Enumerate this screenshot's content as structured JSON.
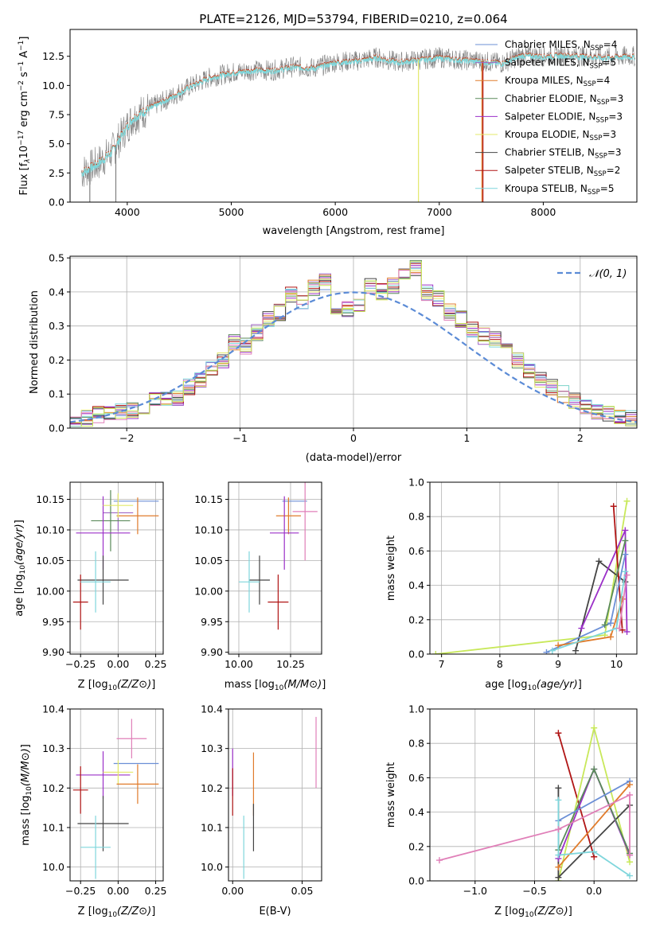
{
  "figure_title": "PLATE=2126, MJD=53794, FIBERID=0210, z=0.064",
  "colors": {
    "chabrier_miles": "#6b8fd6",
    "salpeter_miles": "#a067c6",
    "kroupa_miles": "#e07b2b",
    "chabrier_elodie": "#5a8a5a",
    "salpeter_elodie": "#9b30c8",
    "kroupa_elodie": "#e3e86a",
    "chabrier_stelib": "#444444",
    "salpeter_stelib": "#b01515",
    "kroupa_stelib": "#7fd6dc",
    "data": "#808080",
    "pink": "#e07fb8",
    "lime": "#c8e85a",
    "normal_fit": "#5b8bd6"
  },
  "chart_data": [
    {
      "type": "line",
      "title": "PLATE=2126, MJD=53794, FIBERID=0210, z=0.064",
      "xlabel": "wavelength [Angstrom, rest frame]",
      "ylabel_parts": [
        "Flux [f",
        "λ",
        "10",
        "−17",
        " erg cm",
        "−2",
        " s",
        "−1",
        " A",
        "−1",
        "]"
      ],
      "xlim": [
        3450,
        8900
      ],
      "ylim": [
        0,
        14.8
      ],
      "xticks": [
        "4000",
        "5000",
        "6000",
        "7000",
        "8000"
      ],
      "yticks": [
        "0.0",
        "2.5",
        "5.0",
        "7.5",
        "10.0",
        "12.5"
      ],
      "legend_position": "upper right",
      "legend": [
        {
          "name": "Chabrier MILES",
          "n": "4"
        },
        {
          "name": "Salpeter MILES",
          "n": "5"
        },
        {
          "name": "Kroupa MILES",
          "n": "4"
        },
        {
          "name": "Chabrier ELODIE",
          "n": "3"
        },
        {
          "name": "Salpeter ELODIE",
          "n": "3"
        },
        {
          "name": "Kroupa ELODIE",
          "n": "3"
        },
        {
          "name": "Chabrier STELIB",
          "n": "3"
        },
        {
          "name": "Salpeter STELIB",
          "n": "2"
        },
        {
          "name": "Kroupa STELIB",
          "n": "5"
        }
      ],
      "legend_n_label": ", N",
      "legend_n_sub": "SSP",
      "continuum": [
        [
          3550,
          2.5
        ],
        [
          3700,
          3.2
        ],
        [
          3850,
          4.3
        ],
        [
          3950,
          5.8
        ],
        [
          4050,
          7.2
        ],
        [
          4200,
          8.0
        ],
        [
          4400,
          8.9
        ],
        [
          4600,
          9.9
        ],
        [
          4800,
          10.7
        ],
        [
          5000,
          11.1
        ],
        [
          5200,
          11.3
        ],
        [
          5400,
          11.3
        ],
        [
          5600,
          11.6
        ],
        [
          5800,
          11.5
        ],
        [
          6000,
          12.0
        ],
        [
          6200,
          12.1
        ],
        [
          6400,
          12.4
        ],
        [
          6600,
          12.0
        ],
        [
          6800,
          12.2
        ],
        [
          7000,
          12.4
        ],
        [
          7200,
          12.2
        ],
        [
          7400,
          12.1
        ],
        [
          7600,
          11.9
        ],
        [
          7800,
          12.6
        ],
        [
          8000,
          12.5
        ],
        [
          8200,
          12.6
        ],
        [
          8400,
          12.5
        ],
        [
          8600,
          12.4
        ],
        [
          8800,
          12.5
        ]
      ]
    },
    {
      "type": "line",
      "xlabel": "(data-model)/error",
      "ylabel": "Normed distribution",
      "xlim": [
        -2.5,
        2.5
      ],
      "ylim": [
        0,
        0.505
      ],
      "xticks": [
        "−2",
        "−1",
        "0",
        "1",
        "2"
      ],
      "yticks": [
        "0.0",
        "0.1",
        "0.2",
        "0.3",
        "0.4",
        "0.5"
      ],
      "legend": "𝒩(0, 1)",
      "legend_position": "upper right",
      "bin_edges": [
        -2.5,
        -2.4,
        -2.3,
        -2.2,
        -2.1,
        -2.0,
        -1.9,
        -1.8,
        -1.7,
        -1.6,
        -1.5,
        -1.4,
        -1.3,
        -1.2,
        -1.1,
        -1.0,
        -0.9,
        -0.8,
        -0.7,
        -0.6,
        -0.5,
        -0.4,
        -0.3,
        -0.2,
        -0.1,
        0.0,
        0.1,
        0.2,
        0.3,
        0.4,
        0.5,
        0.6,
        0.7,
        0.8,
        0.9,
        1.0,
        1.1,
        1.2,
        1.3,
        1.4,
        1.5,
        1.6,
        1.7,
        1.8,
        1.9,
        2.0,
        2.1,
        2.2,
        2.3,
        2.4,
        2.5
      ],
      "hist_base": [
        0.02,
        0.03,
        0.04,
        0.05,
        0.05,
        0.05,
        0.06,
        0.08,
        0.09,
        0.09,
        0.12,
        0.14,
        0.17,
        0.2,
        0.25,
        0.24,
        0.28,
        0.32,
        0.34,
        0.39,
        0.37,
        0.41,
        0.43,
        0.36,
        0.35,
        0.36,
        0.42,
        0.4,
        0.42,
        0.45,
        0.47,
        0.4,
        0.38,
        0.34,
        0.32,
        0.29,
        0.27,
        0.26,
        0.23,
        0.2,
        0.17,
        0.14,
        0.12,
        0.1,
        0.08,
        0.06,
        0.05,
        0.04,
        0.03,
        0.03
      ]
    },
    {
      "type": "scatter",
      "xlabel": "Z [log10(Z/Z⊙)]",
      "ylabel": "age  [log10(age/yr)]",
      "xlim": [
        -0.32,
        0.3
      ],
      "ylim": [
        9.897,
        10.178
      ],
      "xticks": [
        "−0.25",
        "0.00",
        "0.25"
      ],
      "yticks": [
        "9.90",
        "9.95",
        "10.00",
        "10.05",
        "10.10",
        "10.15"
      ],
      "points": [
        {
          "c": "chabrier_miles",
          "x": 0.12,
          "y": 10.147,
          "xe": 0.15,
          "ye": 0.0
        },
        {
          "c": "salpeter_miles",
          "x": 0.0,
          "y": 10.128,
          "xe": 0.1,
          "ye": 0.03
        },
        {
          "c": "kroupa_miles",
          "x": 0.13,
          "y": 10.123,
          "xe": 0.14,
          "ye": 0.03
        },
        {
          "c": "chabrier_elodie",
          "x": -0.05,
          "y": 10.115,
          "xe": 0.13,
          "ye": 0.05
        },
        {
          "c": "salpeter_elodie",
          "x": -0.1,
          "y": 10.095,
          "xe": 0.18,
          "ye": 0.06
        },
        {
          "c": "kroupa_elodie",
          "x": 0.0,
          "y": 10.14,
          "xe": 0.1,
          "ye": 0.02
        },
        {
          "c": "chabrier_stelib",
          "x": -0.1,
          "y": 10.018,
          "xe": 0.17,
          "ye": 0.04
        },
        {
          "c": "salpeter_stelib",
          "x": -0.25,
          "y": 9.982,
          "xe": 0.05,
          "ye": 0.045
        },
        {
          "c": "kroupa_stelib",
          "x": -0.15,
          "y": 10.015,
          "xe": 0.1,
          "ye": 0.05
        }
      ]
    },
    {
      "type": "scatter",
      "xlabel": "mass [log10(M/M⊙)]",
      "ylabel": "",
      "xlim": [
        9.95,
        10.4
      ],
      "ylim": [
        9.897,
        10.178
      ],
      "xticks": [
        "10.00",
        "10.25"
      ],
      "yticks": [
        "9.90",
        "9.95",
        "10.00",
        "10.05",
        "10.10",
        "10.15"
      ],
      "points": [
        {
          "c": "chabrier_miles",
          "x": 10.27,
          "y": 10.147,
          "xe": 0.06,
          "ye": 0.0
        },
        {
          "c": "pink",
          "x": 10.32,
          "y": 10.13,
          "xe": 0.06,
          "ye": 0.08
        },
        {
          "c": "kroupa_miles",
          "x": 10.24,
          "y": 10.123,
          "xe": 0.06,
          "ye": 0.03
        },
        {
          "c": "salpeter_elodie",
          "x": 10.22,
          "y": 10.095,
          "xe": 0.07,
          "ye": 0.06
        },
        {
          "c": "chabrier_stelib",
          "x": 10.1,
          "y": 10.018,
          "xe": 0.05,
          "ye": 0.04
        },
        {
          "c": "salpeter_stelib",
          "x": 10.19,
          "y": 9.982,
          "xe": 0.05,
          "ye": 0.045
        },
        {
          "c": "kroupa_stelib",
          "x": 10.05,
          "y": 10.015,
          "xe": 0.05,
          "ye": 0.05
        }
      ]
    },
    {
      "type": "line",
      "xlabel": "age  [log10(age/yr)]",
      "ylabel": "mass weight",
      "xlim": [
        6.8,
        10.35
      ],
      "ylim": [
        0,
        1.0
      ],
      "xticks": [
        "7",
        "8",
        "9",
        "10"
      ],
      "yticks": [
        "0.0",
        "0.2",
        "0.4",
        "0.6",
        "0.8",
        "1.0"
      ],
      "series": [
        {
          "c": "lime",
          "points": [
            [
              6.9,
              0.0
            ],
            [
              9.8,
              0.11
            ],
            [
              10.18,
              0.89
            ]
          ]
        },
        {
          "c": "chabrier_stelib",
          "points": [
            [
              9.3,
              0.02
            ],
            [
              9.7,
              0.54
            ],
            [
              10.15,
              0.42
            ]
          ]
        },
        {
          "c": "salpeter_elodie",
          "points": [
            [
              9.4,
              0.15
            ],
            [
              10.15,
              0.72
            ],
            [
              10.18,
              0.13
            ]
          ]
        },
        {
          "c": "salpeter_stelib",
          "points": [
            [
              9.95,
              0.86
            ],
            [
              10.1,
              0.14
            ]
          ]
        },
        {
          "c": "chabrier_miles",
          "points": [
            [
              8.8,
              0.01
            ],
            [
              9.9,
              0.18
            ],
            [
              10.15,
              0.58
            ]
          ]
        },
        {
          "c": "kroupa_miles",
          "points": [
            [
              9.0,
              0.05
            ],
            [
              9.9,
              0.1
            ],
            [
              10.1,
              0.32
            ]
          ]
        },
        {
          "c": "kroupa_stelib",
          "points": [
            [
              8.9,
              0.02
            ],
            [
              10.0,
              0.15
            ],
            [
              10.15,
              0.48
            ]
          ]
        },
        {
          "c": "chabrier_elodie",
          "points": [
            [
              9.8,
              0.17
            ],
            [
              10.15,
              0.66
            ]
          ]
        },
        {
          "c": "pink",
          "points": [
            [
              10.05,
              0.15
            ],
            [
              10.18,
              0.46
            ]
          ]
        }
      ]
    },
    {
      "type": "scatter",
      "xlabel": "Z [log10(Z/Z⊙)]",
      "ylabel": "mass [log10(M/M⊙)]",
      "xlim": [
        -0.32,
        0.3
      ],
      "ylim": [
        9.965,
        10.4
      ],
      "xticks": [
        "−0.25",
        "0.00",
        "0.25"
      ],
      "yticks": [
        "10.0",
        "10.1",
        "10.2",
        "10.3",
        "10.4"
      ],
      "points": [
        {
          "c": "pink",
          "x": 0.09,
          "y": 10.325,
          "xe": 0.1,
          "ye": 0.05
        },
        {
          "c": "chabrier_miles",
          "x": 0.12,
          "y": 10.262,
          "xe": 0.15,
          "ye": 0.0
        },
        {
          "c": "salpeter_elodie",
          "x": -0.1,
          "y": 10.233,
          "xe": 0.18,
          "ye": 0.06
        },
        {
          "c": "kroupa_elodie",
          "x": 0.0,
          "y": 10.24,
          "xe": 0.1,
          "ye": 0.03
        },
        {
          "c": "kroupa_miles",
          "x": 0.13,
          "y": 10.21,
          "xe": 0.14,
          "ye": 0.05
        },
        {
          "c": "salpeter_stelib",
          "x": -0.25,
          "y": 10.195,
          "xe": 0.05,
          "ye": 0.06
        },
        {
          "c": "chabrier_stelib",
          "x": -0.1,
          "y": 10.11,
          "xe": 0.17,
          "ye": 0.07
        },
        {
          "c": "kroupa_stelib",
          "x": -0.15,
          "y": 10.05,
          "xe": 0.1,
          "ye": 0.08
        }
      ]
    },
    {
      "type": "scatter",
      "xlabel": "E(B-V)",
      "ylabel": "",
      "xlim": [
        -0.003,
        0.064
      ],
      "ylim": [
        9.965,
        10.4
      ],
      "xticks": [
        "0.00",
        "0.05"
      ],
      "yticks": [
        "10.0",
        "10.1",
        "10.2",
        "10.3",
        "10.4"
      ],
      "points": [
        {
          "c": "pink",
          "x": 0.06,
          "y": 10.29,
          "xe": 0.0,
          "ye": 0.09
        },
        {
          "c": "salpeter_elodie",
          "x": 0.0,
          "y": 10.24,
          "xe": 0.0,
          "ye": 0.06
        },
        {
          "c": "salpeter_stelib",
          "x": 0.0,
          "y": 10.19,
          "xe": 0.0,
          "ye": 0.06
        },
        {
          "c": "kroupa_miles",
          "x": 0.015,
          "y": 10.21,
          "xe": 0.0,
          "ye": 0.08
        },
        {
          "c": "chabrier_stelib",
          "x": 0.015,
          "y": 10.1,
          "xe": 0.0,
          "ye": 0.06
        },
        {
          "c": "kroupa_stelib",
          "x": 0.008,
          "y": 10.05,
          "xe": 0.0,
          "ye": 0.08
        }
      ]
    },
    {
      "type": "line",
      "xlabel": "Z [log10(Z/Z⊙)]",
      "ylabel": "mass weight",
      "xlim": [
        -1.38,
        0.36
      ],
      "ylim": [
        0,
        1.0
      ],
      "xticks": [
        "−1.0",
        "−0.5",
        "0.0"
      ],
      "yticks": [
        "0.0",
        "0.2",
        "0.4",
        "0.6",
        "0.8",
        "1.0"
      ],
      "series": [
        {
          "c": "salpeter_stelib",
          "points": [
            [
              -0.3,
              0.86
            ],
            [
              0.0,
              0.14
            ]
          ]
        },
        {
          "c": "lime",
          "points": [
            [
              -0.3,
              0.0
            ],
            [
              0.0,
              0.89
            ],
            [
              0.3,
              0.11
            ]
          ]
        },
        {
          "c": "chabrier_stelib",
          "points": [
            [
              -0.3,
              0.54
            ],
            [
              -0.3,
              0.02
            ],
            [
              0.3,
              0.44
            ]
          ]
        },
        {
          "c": "salpeter_elodie",
          "points": [
            [
              -0.3,
              0.13
            ],
            [
              0.0,
              0.65
            ],
            [
              0.3,
              0.15
            ]
          ]
        },
        {
          "c": "chabrier_elodie",
          "points": [
            [
              -0.3,
              0.18
            ],
            [
              0.0,
              0.65
            ],
            [
              0.3,
              0.16
            ]
          ]
        },
        {
          "c": "chabrier_miles",
          "points": [
            [
              -0.3,
              0.35
            ],
            [
              0.3,
              0.58
            ]
          ]
        },
        {
          "c": "kroupa_miles",
          "points": [
            [
              -0.3,
              0.08
            ],
            [
              0.3,
              0.56
            ]
          ]
        },
        {
          "c": "kroupa_stelib",
          "points": [
            [
              -0.3,
              0.47
            ],
            [
              -0.3,
              0.15
            ],
            [
              0.0,
              0.17
            ],
            [
              0.3,
              0.03
            ]
          ]
        },
        {
          "c": "pink",
          "points": [
            [
              -1.3,
              0.12
            ],
            [
              -0.3,
              0.3
            ],
            [
              0.3,
              0.5
            ],
            [
              0.3,
              0.15
            ]
          ]
        }
      ]
    }
  ]
}
